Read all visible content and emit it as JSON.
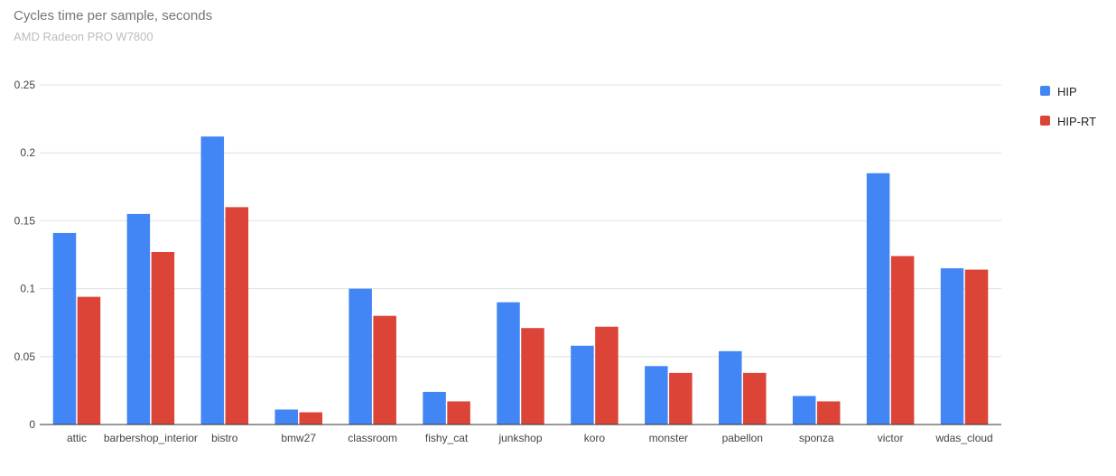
{
  "chart_data": {
    "type": "bar",
    "title": "Cycles time per sample, seconds",
    "subtitle": "AMD Radeon PRO W7800",
    "xlabel": "",
    "ylabel": "",
    "ylim": [
      0,
      0.25
    ],
    "yticks": [
      0,
      0.05,
      0.1,
      0.15,
      0.2,
      0.25
    ],
    "ytick_labels": [
      "0",
      "0.05",
      "0.1",
      "0.15",
      "0.2",
      "0.25"
    ],
    "grid": true,
    "legend_position": "right",
    "categories": [
      "attic",
      "barbershop_interior",
      "bistro",
      "bmw27",
      "classroom",
      "fishy_cat",
      "junkshop",
      "koro",
      "monster",
      "pabellon",
      "sponza",
      "victor",
      "wdas_cloud"
    ],
    "series": [
      {
        "name": "HIP",
        "color": "#4285f4",
        "values": [
          0.141,
          0.155,
          0.212,
          0.011,
          0.1,
          0.024,
          0.09,
          0.058,
          0.043,
          0.054,
          0.021,
          0.185,
          0.115
        ]
      },
      {
        "name": "HIP-RT",
        "color": "#db4437",
        "values": [
          0.094,
          0.127,
          0.16,
          0.009,
          0.08,
          0.017,
          0.071,
          0.072,
          0.038,
          0.038,
          0.017,
          0.124,
          0.114
        ]
      }
    ]
  }
}
